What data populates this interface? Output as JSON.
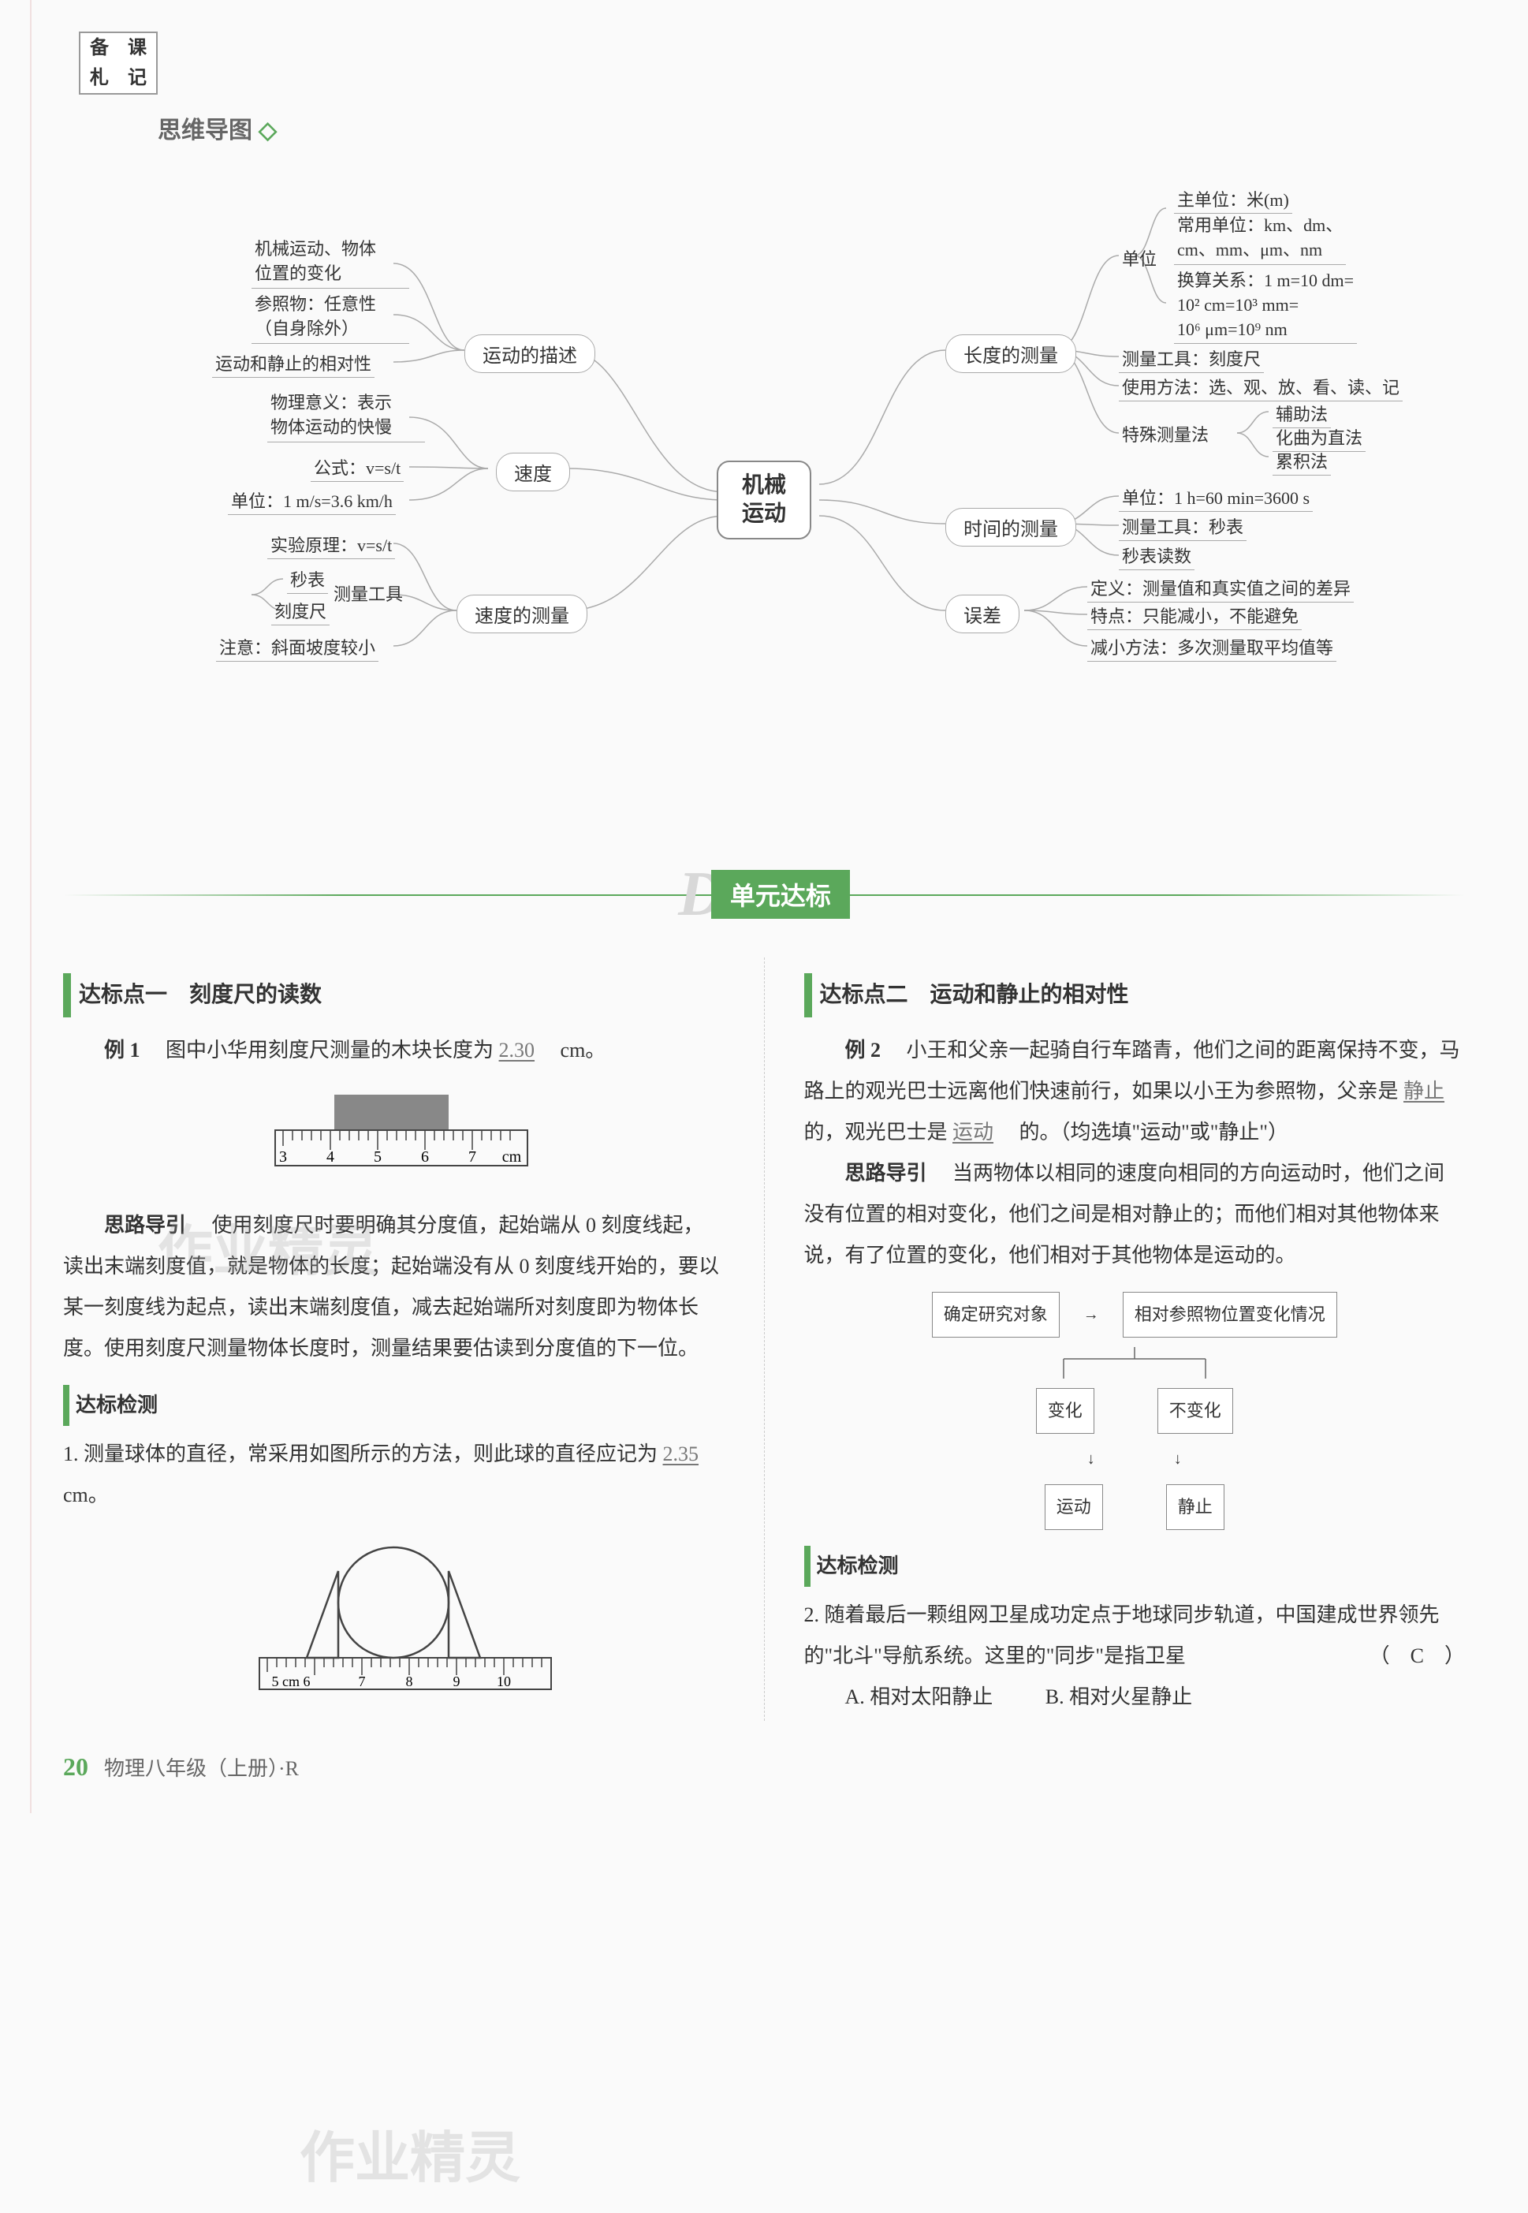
{
  "stamp": {
    "c1": "备",
    "c2": "课",
    "c3": "札",
    "c4": "记"
  },
  "mindmap_title": "思维导图",
  "center": "机械\n运动",
  "subnodes": {
    "desc": "运动的描述",
    "speed": "速度",
    "speed_measure": "速度的测量",
    "length": "长度的测量",
    "time": "时间的测量",
    "error": "误差"
  },
  "leaves": {
    "l1": "机械运动、物体\n位置的变化",
    "l2": "参照物：任意性\n（自身除外）",
    "l3": "运动和静止的相对性",
    "l4": "物理意义：表示\n物体运动的快慢",
    "l5": "公式：v=s/t",
    "l6": "单位：1 m/s=3.6 km/h",
    "l7": "实验原理：v=s/t",
    "l8a": "秒表",
    "l8b": "刻度尺",
    "l8label": "测量工具",
    "l9": "注意：斜面坡度较小",
    "r1a": "主单位：米(m)",
    "r1b": "常用单位：km、dm、\ncm、mm、μm、nm",
    "r1c": "换算关系：1 m=10 dm=\n10² cm=10³ mm=\n10⁶ μm=10⁹ nm",
    "r1label": "单位",
    "r2": "测量工具：刻度尺",
    "r3": "使用方法：选、观、放、看、读、记",
    "r4a": "辅助法",
    "r4b": "化曲为直法",
    "r4c": "累积法",
    "r4label": "特殊测量法",
    "r5": "单位：1 h=60 min=3600 s",
    "r6": "测量工具：秒表",
    "r7": "秒表读数",
    "r8": "定义：测量值和真实值之间的差异",
    "r9": "特点：只能减小，不能避免",
    "r10": "减小方法：多次测量取平均值等"
  },
  "banner": {
    "letter": "D",
    "label": "单元达标"
  },
  "col1": {
    "title": "达标点一　刻度尺的读数",
    "ex_label": "例 1",
    "ex_text": "　图中小华用刻度尺测量的木块长度为",
    "ex_ans": "2.30",
    "ex_unit": "　cm。",
    "ruler_nums": [
      "3",
      "4",
      "5",
      "6",
      "7",
      "cm"
    ],
    "guide_label": "思路导引",
    "guide_text": "　使用刻度尺时要明确其分度值，起始端从 0 刻度线起，读出末端刻度值，就是物体的长度；起始端没有从 0 刻度线开始的，要以某一刻度线为起点，读出末端刻度值，减去起始端所对刻度即为物体长度。使用刻度尺测量物体长度时，测量结果要估读到分度值的下一位。",
    "check_title": "达标检测",
    "q1": "1. 测量球体的直径，常采用如图所示的方法，则此球的直径应记为",
    "q1_ans": "2.35",
    "q1_unit": "　cm。",
    "ruler2_nums": [
      "5 cm 6",
      "7",
      "8",
      "9",
      "10"
    ]
  },
  "col2": {
    "title": "达标点二　运动和静止的相对性",
    "ex_label": "例 2",
    "ex_text": "　小王和父亲一起骑自行车踏青，他们之间的距离保持不变，马路上的观光巴士远离他们快速前行，如果以小王为参照物，父亲是",
    "ans1": "静止",
    "mid1": "　的，观光巴士是",
    "ans2": "运动",
    "mid2": "　的。（均选填\"运动\"或\"静止\"）",
    "guide_label": "思路导引",
    "guide_text": "　当两物体以相同的速度向相同的方向运动时，他们之间没有位置的相对变化，他们之间是相对静止的；而他们相对其他物体来说，有了位置的变化，他们相对于其他物体是运动的。",
    "fc": {
      "b1": "确定研究对象",
      "b2": "相对参照物位置变化情况",
      "b3": "变化",
      "b4": "不变化",
      "b5": "运动",
      "b6": "静止"
    },
    "check_title": "达标检测",
    "q2": "2. 随着最后一颗组网卫星成功定点于地球同步轨道，中国建成世界领先的\"北斗\"导航系统。这里的\"同步\"是指卫星",
    "q2_ans": "（　C　）",
    "q2a": "A. 相对太阳静止",
    "q2b": "B. 相对火星静止"
  },
  "footer": {
    "page": "20",
    "label": "物理八年级（上册）·R"
  },
  "watermark": "作业精灵"
}
